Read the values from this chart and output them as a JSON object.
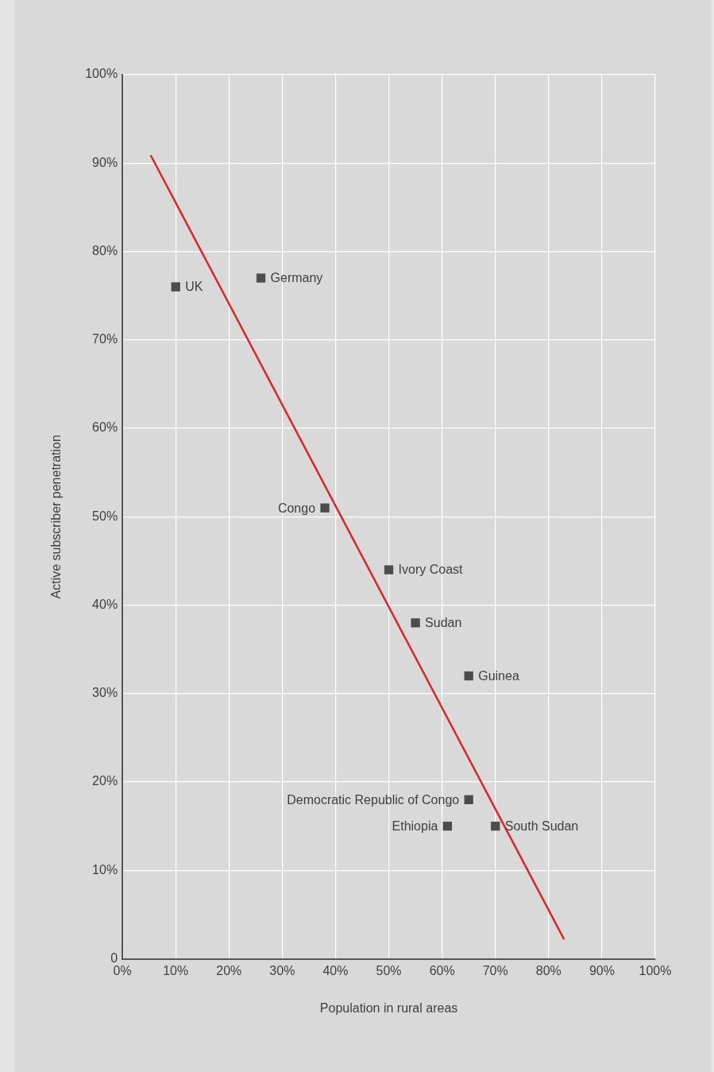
{
  "chart_data": {
    "type": "scatter",
    "xlabel": "Population in rural areas",
    "ylabel": "Active subscriber penetration",
    "marker": "square",
    "grid": true,
    "legend": false,
    "xlim": [
      0,
      100
    ],
    "ylim": [
      0,
      100
    ],
    "xticks": [
      {
        "value": 0,
        "label": "0%"
      },
      {
        "value": 10,
        "label": "10%"
      },
      {
        "value": 20,
        "label": "20%"
      },
      {
        "value": 30,
        "label": "30%"
      },
      {
        "value": 40,
        "label": "40%"
      },
      {
        "value": 50,
        "label": "50%"
      },
      {
        "value": 60,
        "label": "60%"
      },
      {
        "value": 70,
        "label": "70%"
      },
      {
        "value": 80,
        "label": "80%"
      },
      {
        "value": 90,
        "label": "90%"
      },
      {
        "value": 100,
        "label": "100%"
      }
    ],
    "yticks": [
      {
        "value": 0,
        "label": "0"
      },
      {
        "value": 10,
        "label": "10%"
      },
      {
        "value": 20,
        "label": "20%"
      },
      {
        "value": 30,
        "label": "30%"
      },
      {
        "value": 40,
        "label": "40%"
      },
      {
        "value": 50,
        "label": "50%"
      },
      {
        "value": 60,
        "label": "60%"
      },
      {
        "value": 70,
        "label": "70%"
      },
      {
        "value": 80,
        "label": "80%"
      },
      {
        "value": 90,
        "label": "90%"
      },
      {
        "value": 100,
        "label": "100%"
      }
    ],
    "series": [
      {
        "name": "UK",
        "color": "#4d4d4d",
        "x": [
          10
        ],
        "values": [
          76
        ]
      },
      {
        "name": "Germany",
        "color": "#4d4d4d",
        "x": [
          26
        ],
        "values": [
          77
        ]
      },
      {
        "name": "Congo",
        "color": "#4d4d4d",
        "x": [
          38
        ],
        "values": [
          51
        ]
      },
      {
        "name": "Ivory Coast",
        "color": "#4d4d4d",
        "x": [
          50
        ],
        "values": [
          44
        ]
      },
      {
        "name": "Sudan",
        "color": "#4d4d4d",
        "x": [
          55
        ],
        "values": [
          38
        ]
      },
      {
        "name": "Guinea",
        "color": "#4d4d4d",
        "x": [
          65
        ],
        "values": [
          32
        ]
      },
      {
        "name": "Democratic Republic of Congo",
        "color": "#4d4d4d",
        "x": [
          65
        ],
        "values": [
          18
        ]
      },
      {
        "name": "Ethiopia",
        "color": "#4d4d4d",
        "x": [
          61
        ],
        "values": [
          15
        ]
      },
      {
        "name": "South Sudan",
        "color": "#4d4d4d",
        "x": [
          70
        ],
        "values": [
          15
        ]
      },
      {
        "type": "line",
        "marker": "none",
        "color": "#d9262b",
        "x": [
          5.3,
          82.9
        ],
        "values": [
          90.9,
          2.2
        ]
      }
    ]
  }
}
